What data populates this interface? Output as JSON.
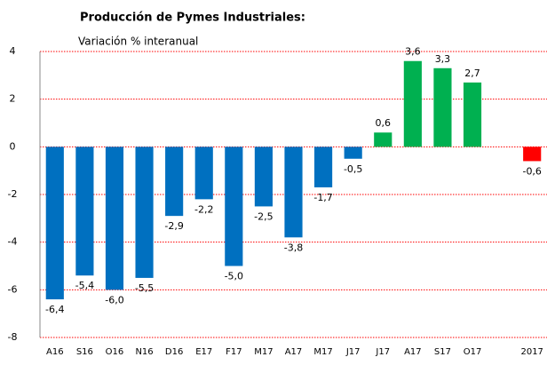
{
  "chart_data": {
    "type": "bar",
    "title": "Producción de Pymes Industriales:",
    "subtitle": "Variación % interanual",
    "categories": [
      "A16",
      "S16",
      "O16",
      "N16",
      "D16",
      "E17",
      "F17",
      "M17",
      "A17",
      "M17",
      "J17",
      "J17",
      "A17",
      "S17",
      "O17",
      null,
      "2017"
    ],
    "values": [
      -6.4,
      -5.4,
      -6.0,
      -5.5,
      -2.9,
      -2.2,
      -5.0,
      -2.5,
      -3.8,
      -1.7,
      -0.5,
      0.6,
      3.6,
      3.3,
      2.7,
      null,
      -0.6
    ],
    "value_labels": [
      "-6,4",
      "-5,4",
      "-6,0",
      "-5,5",
      "-2,9",
      "-2,2",
      "-5,0",
      "-2,5",
      "-3,8",
      "-1,7",
      "-0,5",
      "0,6",
      "3,6",
      "3,3",
      "2,7",
      null,
      "-0,6"
    ],
    "colors": [
      "#0070c0",
      "#0070c0",
      "#0070c0",
      "#0070c0",
      "#0070c0",
      "#0070c0",
      "#0070c0",
      "#0070c0",
      "#0070c0",
      "#0070c0",
      "#0070c0",
      "#00b050",
      "#00b050",
      "#00b050",
      "#00b050",
      null,
      "#ff0000"
    ],
    "ylim": [
      -8,
      4
    ],
    "yticks": [
      4,
      2,
      0,
      -2,
      -4,
      -6,
      -8
    ],
    "grid": true,
    "grid_color": "#ff0000"
  }
}
